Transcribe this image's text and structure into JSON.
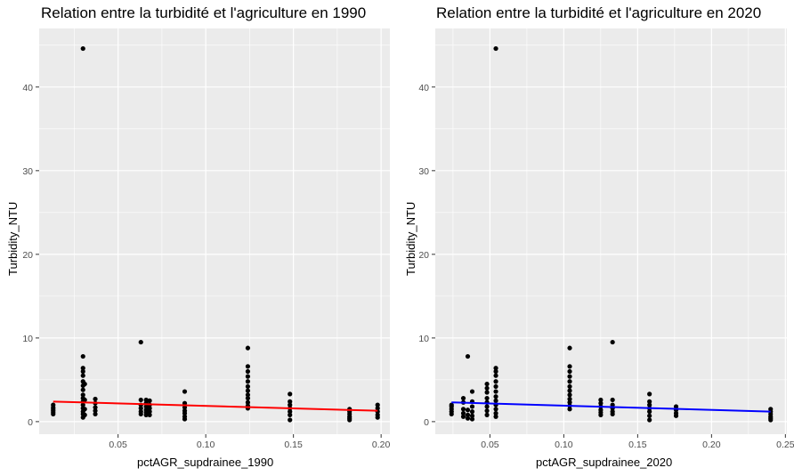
{
  "chart_data": [
    {
      "type": "scatter",
      "title": "Relation entre la turbidité et l'agriculture en 1990",
      "xlabel": "pctAGR_supdrainee_1990",
      "ylabel": "Turbidity_NTU",
      "xlim": [
        0.005,
        0.205
      ],
      "ylim": [
        -1.5,
        47
      ],
      "x_ticks": [
        0.05,
        0.1,
        0.15,
        0.2
      ],
      "x_tick_labels": [
        "0.05",
        "0.10",
        "0.15",
        "0.20"
      ],
      "y_ticks": [
        0,
        10,
        20,
        30,
        40
      ],
      "y_tick_labels": [
        "0",
        "10",
        "20",
        "30",
        "40"
      ],
      "grid": true,
      "points": [
        {
          "x": 0.013,
          "y": 0.9
        },
        {
          "x": 0.013,
          "y": 1.1
        },
        {
          "x": 0.013,
          "y": 1.3
        },
        {
          "x": 0.013,
          "y": 1.5
        },
        {
          "x": 0.013,
          "y": 1.7
        },
        {
          "x": 0.013,
          "y": 2.0
        },
        {
          "x": 0.03,
          "y": 44.6
        },
        {
          "x": 0.03,
          "y": 7.8
        },
        {
          "x": 0.03,
          "y": 6.4
        },
        {
          "x": 0.03,
          "y": 6.0
        },
        {
          "x": 0.03,
          "y": 5.5
        },
        {
          "x": 0.03,
          "y": 4.8
        },
        {
          "x": 0.03,
          "y": 4.3
        },
        {
          "x": 0.03,
          "y": 3.8
        },
        {
          "x": 0.03,
          "y": 3.2
        },
        {
          "x": 0.03,
          "y": 2.8
        },
        {
          "x": 0.03,
          "y": 2.4
        },
        {
          "x": 0.03,
          "y": 2.0
        },
        {
          "x": 0.03,
          "y": 1.6
        },
        {
          "x": 0.03,
          "y": 1.2
        },
        {
          "x": 0.03,
          "y": 0.9
        },
        {
          "x": 0.03,
          "y": 0.5
        },
        {
          "x": 0.031,
          "y": 4.5
        },
        {
          "x": 0.031,
          "y": 2.6
        },
        {
          "x": 0.031,
          "y": 1.5
        },
        {
          "x": 0.031,
          "y": 0.8
        },
        {
          "x": 0.037,
          "y": 2.7
        },
        {
          "x": 0.037,
          "y": 2.2
        },
        {
          "x": 0.037,
          "y": 1.7
        },
        {
          "x": 0.037,
          "y": 1.3
        },
        {
          "x": 0.037,
          "y": 0.9
        },
        {
          "x": 0.063,
          "y": 9.5
        },
        {
          "x": 0.063,
          "y": 2.6
        },
        {
          "x": 0.063,
          "y": 2.0
        },
        {
          "x": 0.063,
          "y": 1.6
        },
        {
          "x": 0.063,
          "y": 1.2
        },
        {
          "x": 0.063,
          "y": 0.9
        },
        {
          "x": 0.066,
          "y": 2.6
        },
        {
          "x": 0.066,
          "y": 2.2
        },
        {
          "x": 0.066,
          "y": 1.8
        },
        {
          "x": 0.066,
          "y": 1.4
        },
        {
          "x": 0.066,
          "y": 1.1
        },
        {
          "x": 0.066,
          "y": 0.8
        },
        {
          "x": 0.068,
          "y": 2.5
        },
        {
          "x": 0.068,
          "y": 2.0
        },
        {
          "x": 0.068,
          "y": 1.6
        },
        {
          "x": 0.068,
          "y": 1.2
        },
        {
          "x": 0.068,
          "y": 0.8
        },
        {
          "x": 0.088,
          "y": 3.6
        },
        {
          "x": 0.088,
          "y": 2.2
        },
        {
          "x": 0.088,
          "y": 1.7
        },
        {
          "x": 0.088,
          "y": 1.3
        },
        {
          "x": 0.088,
          "y": 1.0
        },
        {
          "x": 0.088,
          "y": 0.6
        },
        {
          "x": 0.088,
          "y": 0.3
        },
        {
          "x": 0.124,
          "y": 8.8
        },
        {
          "x": 0.124,
          "y": 6.6
        },
        {
          "x": 0.124,
          "y": 6.0
        },
        {
          "x": 0.124,
          "y": 5.4
        },
        {
          "x": 0.124,
          "y": 4.8
        },
        {
          "x": 0.124,
          "y": 4.2
        },
        {
          "x": 0.124,
          "y": 3.7
        },
        {
          "x": 0.124,
          "y": 3.2
        },
        {
          "x": 0.124,
          "y": 2.8
        },
        {
          "x": 0.124,
          "y": 2.3
        },
        {
          "x": 0.124,
          "y": 1.9
        },
        {
          "x": 0.124,
          "y": 1.6
        },
        {
          "x": 0.148,
          "y": 3.3
        },
        {
          "x": 0.148,
          "y": 2.4
        },
        {
          "x": 0.148,
          "y": 2.0
        },
        {
          "x": 0.148,
          "y": 1.6
        },
        {
          "x": 0.148,
          "y": 1.2
        },
        {
          "x": 0.148,
          "y": 0.8
        },
        {
          "x": 0.148,
          "y": 0.2
        },
        {
          "x": 0.182,
          "y": 1.5
        },
        {
          "x": 0.182,
          "y": 1.2
        },
        {
          "x": 0.182,
          "y": 0.9
        },
        {
          "x": 0.182,
          "y": 0.6
        },
        {
          "x": 0.182,
          "y": 0.4
        },
        {
          "x": 0.182,
          "y": 0.2
        },
        {
          "x": 0.198,
          "y": 2.0
        },
        {
          "x": 0.198,
          "y": 1.6
        },
        {
          "x": 0.198,
          "y": 1.2
        },
        {
          "x": 0.198,
          "y": 0.8
        },
        {
          "x": 0.198,
          "y": 0.5
        }
      ],
      "trend": {
        "x": [
          0.013,
          0.198
        ],
        "y": [
          2.4,
          1.3
        ],
        "color": "#ff0000"
      },
      "point_color": "#000000",
      "panel_bg": "#ebebeb",
      "grid_color": "#ffffff"
    },
    {
      "type": "scatter",
      "title": "Relation entre la turbidité et l'agriculture en 2020",
      "xlabel": "pctAGR_supdrainee_2020",
      "ylabel": "Turbidity_NTU",
      "xlim": [
        0.013,
        0.251
      ],
      "ylim": [
        -1.5,
        47
      ],
      "x_ticks": [
        0.05,
        0.1,
        0.15,
        0.2,
        0.25
      ],
      "x_tick_labels": [
        "0.05",
        "0.10",
        "0.15",
        "0.20",
        "0.25"
      ],
      "y_ticks": [
        0,
        10,
        20,
        30,
        40
      ],
      "y_tick_labels": [
        "0",
        "10",
        "20",
        "30",
        "40"
      ],
      "grid": true,
      "points": [
        {
          "x": 0.024,
          "y": 0.9
        },
        {
          "x": 0.024,
          "y": 1.2
        },
        {
          "x": 0.024,
          "y": 1.5
        },
        {
          "x": 0.024,
          "y": 1.8
        },
        {
          "x": 0.024,
          "y": 2.0
        },
        {
          "x": 0.032,
          "y": 2.8
        },
        {
          "x": 0.032,
          "y": 2.3
        },
        {
          "x": 0.032,
          "y": 1.5
        },
        {
          "x": 0.032,
          "y": 1.0
        },
        {
          "x": 0.032,
          "y": 0.6
        },
        {
          "x": 0.035,
          "y": 7.8
        },
        {
          "x": 0.035,
          "y": 1.4
        },
        {
          "x": 0.035,
          "y": 0.8
        },
        {
          "x": 0.035,
          "y": 0.4
        },
        {
          "x": 0.038,
          "y": 3.6
        },
        {
          "x": 0.038,
          "y": 2.4
        },
        {
          "x": 0.038,
          "y": 1.8
        },
        {
          "x": 0.038,
          "y": 1.2
        },
        {
          "x": 0.038,
          "y": 0.7
        },
        {
          "x": 0.038,
          "y": 0.3
        },
        {
          "x": 0.048,
          "y": 4.5
        },
        {
          "x": 0.048,
          "y": 4.0
        },
        {
          "x": 0.048,
          "y": 3.5
        },
        {
          "x": 0.048,
          "y": 2.8
        },
        {
          "x": 0.048,
          "y": 2.3
        },
        {
          "x": 0.048,
          "y": 1.8
        },
        {
          "x": 0.048,
          "y": 1.3
        },
        {
          "x": 0.048,
          "y": 0.8
        },
        {
          "x": 0.054,
          "y": 44.6
        },
        {
          "x": 0.054,
          "y": 6.4
        },
        {
          "x": 0.054,
          "y": 6.0
        },
        {
          "x": 0.054,
          "y": 5.5
        },
        {
          "x": 0.054,
          "y": 4.8
        },
        {
          "x": 0.054,
          "y": 4.2
        },
        {
          "x": 0.054,
          "y": 3.6
        },
        {
          "x": 0.054,
          "y": 3.0
        },
        {
          "x": 0.054,
          "y": 2.5
        },
        {
          "x": 0.054,
          "y": 2.0
        },
        {
          "x": 0.054,
          "y": 1.5
        },
        {
          "x": 0.054,
          "y": 1.0
        },
        {
          "x": 0.054,
          "y": 0.6
        },
        {
          "x": 0.104,
          "y": 8.8
        },
        {
          "x": 0.104,
          "y": 6.6
        },
        {
          "x": 0.104,
          "y": 6.0
        },
        {
          "x": 0.104,
          "y": 5.4
        },
        {
          "x": 0.104,
          "y": 4.8
        },
        {
          "x": 0.104,
          "y": 4.2
        },
        {
          "x": 0.104,
          "y": 3.7
        },
        {
          "x": 0.104,
          "y": 3.2
        },
        {
          "x": 0.104,
          "y": 2.7
        },
        {
          "x": 0.104,
          "y": 2.3
        },
        {
          "x": 0.104,
          "y": 1.9
        },
        {
          "x": 0.104,
          "y": 1.5
        },
        {
          "x": 0.125,
          "y": 2.6
        },
        {
          "x": 0.125,
          "y": 2.2
        },
        {
          "x": 0.125,
          "y": 1.8
        },
        {
          "x": 0.125,
          "y": 1.4
        },
        {
          "x": 0.125,
          "y": 1.1
        },
        {
          "x": 0.125,
          "y": 0.8
        },
        {
          "x": 0.133,
          "y": 9.5
        },
        {
          "x": 0.133,
          "y": 2.6
        },
        {
          "x": 0.133,
          "y": 2.0
        },
        {
          "x": 0.133,
          "y": 1.6
        },
        {
          "x": 0.133,
          "y": 1.2
        },
        {
          "x": 0.133,
          "y": 0.9
        },
        {
          "x": 0.158,
          "y": 3.3
        },
        {
          "x": 0.158,
          "y": 2.4
        },
        {
          "x": 0.158,
          "y": 2.0
        },
        {
          "x": 0.158,
          "y": 1.6
        },
        {
          "x": 0.158,
          "y": 1.2
        },
        {
          "x": 0.158,
          "y": 0.7
        },
        {
          "x": 0.158,
          "y": 0.2
        },
        {
          "x": 0.176,
          "y": 1.8
        },
        {
          "x": 0.176,
          "y": 1.4
        },
        {
          "x": 0.176,
          "y": 1.0
        },
        {
          "x": 0.176,
          "y": 0.7
        },
        {
          "x": 0.24,
          "y": 1.5
        },
        {
          "x": 0.24,
          "y": 1.2
        },
        {
          "x": 0.24,
          "y": 0.9
        },
        {
          "x": 0.24,
          "y": 0.6
        },
        {
          "x": 0.24,
          "y": 0.4
        },
        {
          "x": 0.24,
          "y": 0.2
        }
      ],
      "trend": {
        "x": [
          0.024,
          0.24
        ],
        "y": [
          2.3,
          1.2
        ],
        "color": "#0000ff"
      },
      "point_color": "#000000",
      "panel_bg": "#ebebeb",
      "grid_color": "#ffffff"
    }
  ]
}
